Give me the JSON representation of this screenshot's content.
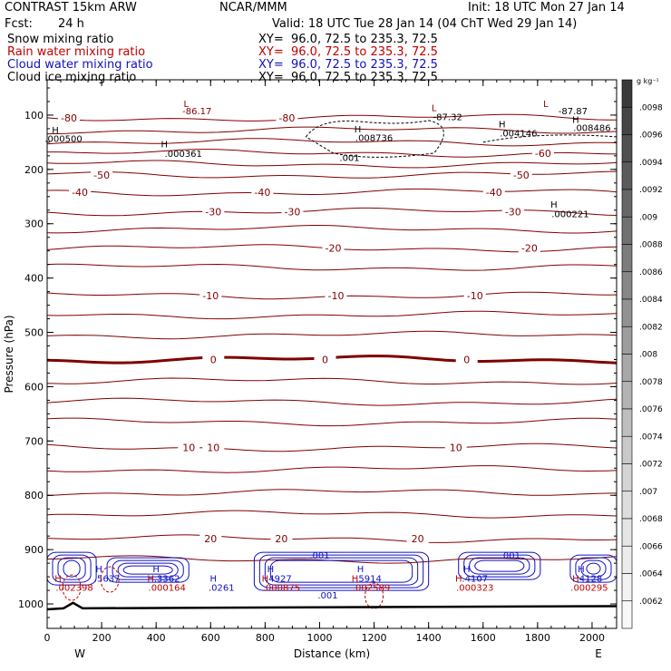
{
  "header": {
    "model": "CONTRAST 15km ARW",
    "org": "NCAR/MMM",
    "init": "Init: 18 UTC Mon 27 Jan 14",
    "fcst_label": "Fcst:",
    "fcst_value": "24 h",
    "valid": "Valid: 18 UTC Tue 28 Jan 14 (04 ChT Wed 29 Jan 14)",
    "fields": [
      {
        "name": "Snow mixing ratio",
        "xy": "XY=  96.0, 72.5 to 235.3, 72.5",
        "color": "#000000"
      },
      {
        "name": "Rain water mixing ratio",
        "xy": "XY=  96.0, 72.5 to 235.3, 72.5",
        "color": "#c00000"
      },
      {
        "name": "Cloud water mixing ratio",
        "xy": "XY=  96.0, 72.5 to 235.3, 72.5",
        "color": "#1010c0"
      },
      {
        "name": "Cloud ice mixing ratio",
        "xy": "XY=  96.0, 72.5 to 235.3, 72.5",
        "color": "#000000"
      }
    ]
  },
  "chart_data": {
    "type": "cross-section",
    "xlabel": "Distance (km)",
    "ylabel": "Pressure (hPa)",
    "xlim": [
      0,
      2090
    ],
    "ylim": [
      1045,
      35
    ],
    "x_ticks": [
      "0",
      "200",
      "400",
      "600",
      "800",
      "1000",
      "1200",
      "1400",
      "1600",
      "1800",
      "2000"
    ],
    "x_tick_values": [
      0,
      200,
      400,
      600,
      800,
      1000,
      1200,
      1400,
      1600,
      1800,
      2000
    ],
    "y_ticks": [
      "100",
      "200",
      "300",
      "400",
      "500",
      "600",
      "700",
      "800",
      "900",
      "1000"
    ],
    "y_tick_values": [
      100,
      200,
      300,
      400,
      500,
      600,
      700,
      800,
      900,
      1000
    ],
    "endpoints": {
      "west": "W",
      "east": "E"
    },
    "colorbar": {
      "unit": "g kg⁻¹",
      "labels": [
        ".0098",
        ".0096",
        ".0094",
        ".0092",
        ".009",
        ".0088",
        ".0086",
        ".0084",
        ".0082",
        ".008",
        ".0078",
        ".0076",
        ".0074",
        ".0072",
        ".007",
        ".0068",
        ".0066",
        ".0064",
        ".0062"
      ],
      "colors": [
        "#3a3a3a",
        "#454545",
        "#505050",
        "#5b5b5b",
        "#666666",
        "#717171",
        "#7c7c7c",
        "#878787",
        "#929292",
        "#9d9d9d",
        "#a8a8a8",
        "#b3b3b3",
        "#bebebe",
        "#c9c9c9",
        "#d4d4d4",
        "#dddddd",
        "#e5e5e5",
        "#ececec",
        "#f3f3f3",
        "#f8f8f8"
      ]
    },
    "isotherms": [
      {
        "p": 105,
        "label": "-80",
        "xs": [
          80,
          880
        ],
        "thick": false
      },
      {
        "p": 128,
        "label": "",
        "xs": [],
        "thick": false
      },
      {
        "p": 150,
        "label": "",
        "xs": [],
        "thick": false
      },
      {
        "p": 170,
        "label": "-60",
        "xs": [
          1820
        ],
        "thick": false
      },
      {
        "p": 190,
        "label": "",
        "xs": [],
        "thick": false
      },
      {
        "p": 210,
        "label": "-50",
        "xs": [
          200,
          1740
        ],
        "thick": false
      },
      {
        "p": 242,
        "label": "-40",
        "xs": [
          120,
          790,
          1640
        ],
        "thick": false
      },
      {
        "p": 278,
        "label": "-30",
        "xs": [
          610,
          900,
          1710
        ],
        "thick": false
      },
      {
        "p": 310,
        "label": "",
        "xs": [],
        "thick": false
      },
      {
        "p": 345,
        "label": "-20",
        "xs": [
          1050,
          1770
        ],
        "thick": false
      },
      {
        "p": 380,
        "label": "",
        "xs": [],
        "thick": false
      },
      {
        "p": 432,
        "label": "-10",
        "xs": [
          600,
          1060,
          1570
        ],
        "thick": false
      },
      {
        "p": 468,
        "label": "",
        "xs": [],
        "thick": false
      },
      {
        "p": 505,
        "label": "",
        "xs": [],
        "thick": false
      },
      {
        "p": 550,
        "label": "0",
        "xs": [
          610,
          1020,
          1540
        ],
        "thick": true
      },
      {
        "p": 590,
        "label": "",
        "xs": [],
        "thick": false
      },
      {
        "p": 628,
        "label": "",
        "xs": [],
        "thick": false
      },
      {
        "p": 665,
        "label": "",
        "xs": [],
        "thick": false
      },
      {
        "p": 712,
        "label": "10",
        "xs": [
          520,
          610,
          1500
        ],
        "thick": false
      },
      {
        "p": 752,
        "label": "",
        "xs": [],
        "thick": false
      },
      {
        "p": 795,
        "label": "",
        "xs": [],
        "thick": false
      },
      {
        "p": 835,
        "label": "",
        "xs": [],
        "thick": false
      },
      {
        "p": 880,
        "label": "20",
        "xs": [
          600,
          860,
          1360
        ],
        "thick": false
      },
      {
        "p": 918,
        "label": "",
        "xs": [],
        "thick": false
      }
    ],
    "annotations": [
      {
        "text": "-86.17",
        "x": 550,
        "p": 92,
        "color": "#800000"
      },
      {
        "text": "L",
        "x": 510,
        "p": 78,
        "color": "#800000"
      },
      {
        "text": "L",
        "x": 1420,
        "p": 86,
        "color": "#800000"
      },
      {
        "text": "-87.32",
        "x": 1470,
        "p": 103,
        "color": "#000000"
      },
      {
        "text": "L",
        "x": 1830,
        "p": 78,
        "color": "#800000"
      },
      {
        "text": "-87.87",
        "x": 1930,
        "p": 92,
        "color": "#000000"
      },
      {
        "text": "H",
        "x": 30,
        "p": 127,
        "color": "#000000"
      },
      {
        "text": ".000500",
        "x": 60,
        "p": 143,
        "color": "#000000"
      },
      {
        "text": "H",
        "x": 430,
        "p": 153,
        "color": "#000000"
      },
      {
        "text": ".000361",
        "x": 500,
        "p": 170,
        "color": "#000000"
      },
      {
        "text": "H",
        "x": 1140,
        "p": 125,
        "color": "#000000"
      },
      {
        "text": ".008736",
        "x": 1200,
        "p": 141,
        "color": "#000000"
      },
      {
        "text": ".001",
        "x": 1110,
        "p": 178,
        "color": "#000000"
      },
      {
        "text": "H",
        "x": 1670,
        "p": 116,
        "color": "#000000"
      },
      {
        "text": ".004146",
        "x": 1730,
        "p": 133,
        "color": "#000000"
      },
      {
        "text": "H",
        "x": 1940,
        "p": 108,
        "color": "#000000"
      },
      {
        "text": ".008486",
        "x": 2000,
        "p": 123,
        "color": "#000000"
      },
      {
        "text": "H",
        "x": 1860,
        "p": 264,
        "color": "#000000"
      },
      {
        "text": ".000221",
        "x": 1920,
        "p": 281,
        "color": "#000000"
      },
      {
        "text": "H",
        "x": 190,
        "p": 935,
        "color": "#1010c0"
      },
      {
        "text": ".5637",
        "x": 220,
        "p": 952,
        "color": "#1010c0"
      },
      {
        "text": "H",
        "x": 400,
        "p": 935,
        "color": "#1010c0"
      },
      {
        "text": ".3362",
        "x": 440,
        "p": 952,
        "color": "#1010c0"
      },
      {
        "text": "H",
        "x": 610,
        "p": 952,
        "color": "#1010c0"
      },
      {
        "text": ".0261",
        "x": 640,
        "p": 969,
        "color": "#1010c0"
      },
      {
        "text": ".001",
        "x": 1000,
        "p": 910,
        "color": "#1010c0"
      },
      {
        "text": "H",
        "x": 820,
        "p": 935,
        "color": "#1010c0"
      },
      {
        "text": ".4927",
        "x": 850,
        "p": 952,
        "color": "#1010c0"
      },
      {
        "text": "H",
        "x": 1150,
        "p": 935,
        "color": "#1010c0"
      },
      {
        "text": ".5914",
        "x": 1180,
        "p": 952,
        "color": "#1010c0"
      },
      {
        "text": ".001",
        "x": 1030,
        "p": 983,
        "color": "#1010c0"
      },
      {
        "text": ".001",
        "x": 1700,
        "p": 910,
        "color": "#1010c0"
      },
      {
        "text": "H",
        "x": 1540,
        "p": 935,
        "color": "#1010c0"
      },
      {
        "text": ".4107",
        "x": 1570,
        "p": 952,
        "color": "#1010c0"
      },
      {
        "text": "H",
        "x": 1960,
        "p": 935,
        "color": "#1010c0"
      },
      {
        "text": ".4128",
        "x": 1990,
        "p": 952,
        "color": "#1010c0"
      },
      {
        "text": "H",
        "x": 40,
        "p": 952,
        "color": "#c00000"
      },
      {
        "text": ".002398",
        "x": 100,
        "p": 969,
        "color": "#c00000"
      },
      {
        "text": "H",
        "x": 380,
        "p": 952,
        "color": "#c00000"
      },
      {
        "text": ".000164",
        "x": 440,
        "p": 969,
        "color": "#c00000"
      },
      {
        "text": "H",
        "x": 800,
        "p": 952,
        "color": "#c00000"
      },
      {
        "text": ".000875",
        "x": 860,
        "p": 969,
        "color": "#c00000"
      },
      {
        "text": "H",
        "x": 1130,
        "p": 952,
        "color": "#c00000"
      },
      {
        "text": ".002589",
        "x": 1190,
        "p": 969,
        "color": "#c00000"
      },
      {
        "text": "H",
        "x": 1510,
        "p": 952,
        "color": "#c00000"
      },
      {
        "text": ".000323",
        "x": 1570,
        "p": 969,
        "color": "#c00000"
      },
      {
        "text": "H",
        "x": 1940,
        "p": 952,
        "color": "#c00000"
      },
      {
        "text": ".000295",
        "x": 1990,
        "p": 969,
        "color": "#c00000"
      }
    ],
    "cloud_water_blobs": [
      {
        "x0": 0,
        "x1": 180,
        "p0": 905,
        "p1": 965
      },
      {
        "x0": 220,
        "x1": 520,
        "p0": 915,
        "p1": 960
      },
      {
        "x0": 760,
        "x1": 1400,
        "p0": 905,
        "p1": 975
      },
      {
        "x0": 1510,
        "x1": 1810,
        "p0": 905,
        "p1": 955
      },
      {
        "x0": 1920,
        "x1": 2090,
        "p0": 910,
        "p1": 960
      }
    ],
    "colors": {
      "isotherm": "#800000",
      "rain": "#c00000",
      "cloudwater": "#1010c0",
      "snow": "#000000",
      "axis": "#000000"
    }
  }
}
